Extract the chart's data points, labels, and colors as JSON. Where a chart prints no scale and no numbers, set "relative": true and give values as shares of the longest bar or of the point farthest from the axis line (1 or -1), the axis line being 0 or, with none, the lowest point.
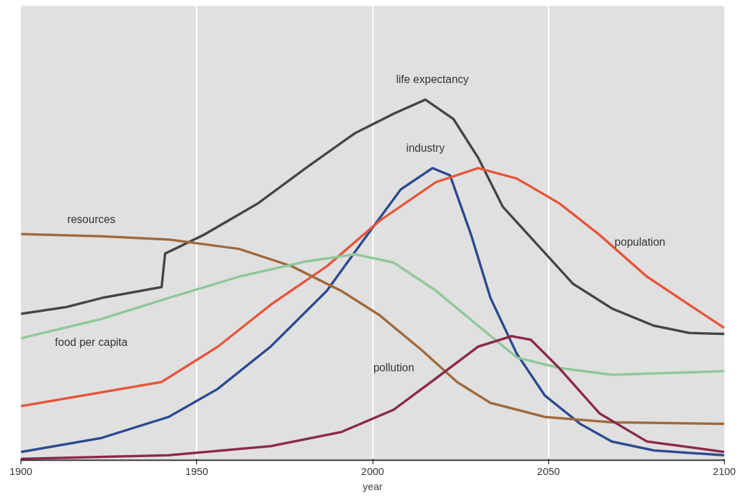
{
  "chart_data": {
    "type": "line",
    "relative": true,
    "xlabel": "year",
    "xlim": [
      1900,
      2100
    ],
    "xticks": [
      1900,
      1950,
      2000,
      2050,
      2100
    ],
    "grid": "x",
    "marker": "none",
    "line_style": "solid",
    "series": [
      {
        "name": "life expectancy",
        "color": "#454545",
        "x": [
          1900,
          1913,
          1923,
          1940,
          1941,
          1952,
          1967.5,
          1981,
          1995,
          2006,
          2015,
          2023,
          2030,
          2037,
          2047,
          2057,
          2068,
          2080,
          2090,
          2100
        ],
        "values": [
          0.406,
          0.425,
          0.45,
          0.48,
          0.573,
          0.625,
          0.713,
          0.81,
          0.907,
          0.961,
          1.0,
          0.946,
          0.839,
          0.703,
          0.596,
          0.489,
          0.421,
          0.373,
          0.353,
          0.35
        ]
      },
      {
        "name": "industry",
        "color": "#2c4a8f",
        "x": [
          1900,
          1923,
          1942,
          1956,
          1971,
          1987,
          1998.5,
          2008,
          2017,
          2022,
          2028,
          2033.5,
          2041,
          2049,
          2059,
          2068,
          2080,
          2100
        ],
        "values": [
          0.023,
          0.062,
          0.12,
          0.198,
          0.315,
          0.47,
          0.625,
          0.751,
          0.81,
          0.79,
          0.625,
          0.45,
          0.295,
          0.179,
          0.101,
          0.052,
          0.027,
          0.014
        ]
      },
      {
        "name": "population",
        "color": "#e8553a",
        "x": [
          1900,
          1940,
          1956,
          1971,
          1987,
          2002,
          2018,
          2030,
          2041,
          2053,
          2064.5,
          2078,
          2090,
          2100
        ],
        "values": [
          0.15,
          0.217,
          0.315,
          0.431,
          0.538,
          0.664,
          0.771,
          0.81,
          0.781,
          0.713,
          0.625,
          0.509,
          0.431,
          0.367
        ]
      },
      {
        "name": "resources",
        "color": "#a0683a",
        "x": [
          1900,
          1923,
          1942,
          1962,
          1977,
          1991,
          2002,
          2014,
          2024,
          2033.5,
          2049,
          2068,
          2100
        ],
        "values": [
          0.627,
          0.621,
          0.612,
          0.586,
          0.538,
          0.47,
          0.402,
          0.305,
          0.217,
          0.159,
          0.12,
          0.105,
          0.101
        ]
      },
      {
        "name": "food per capita",
        "color": "#8fc79a",
        "x": [
          1900,
          1923,
          1942,
          1962,
          1981,
          1995,
          2006,
          2018,
          2030,
          2041,
          2053,
          2068,
          2100
        ],
        "values": [
          0.338,
          0.392,
          0.45,
          0.509,
          0.551,
          0.571,
          0.548,
          0.47,
          0.373,
          0.285,
          0.256,
          0.237,
          0.247
        ]
      },
      {
        "name": "pollution",
        "color": "#8b2a4a",
        "x": [
          1900,
          1942,
          1971,
          1991,
          2006,
          2018,
          2030,
          2039.5,
          2045,
          2053,
          2064.5,
          2078,
          2100
        ],
        "values": [
          0.004,
          0.014,
          0.039,
          0.078,
          0.14,
          0.227,
          0.315,
          0.344,
          0.334,
          0.256,
          0.13,
          0.052,
          0.023
        ]
      }
    ]
  }
}
